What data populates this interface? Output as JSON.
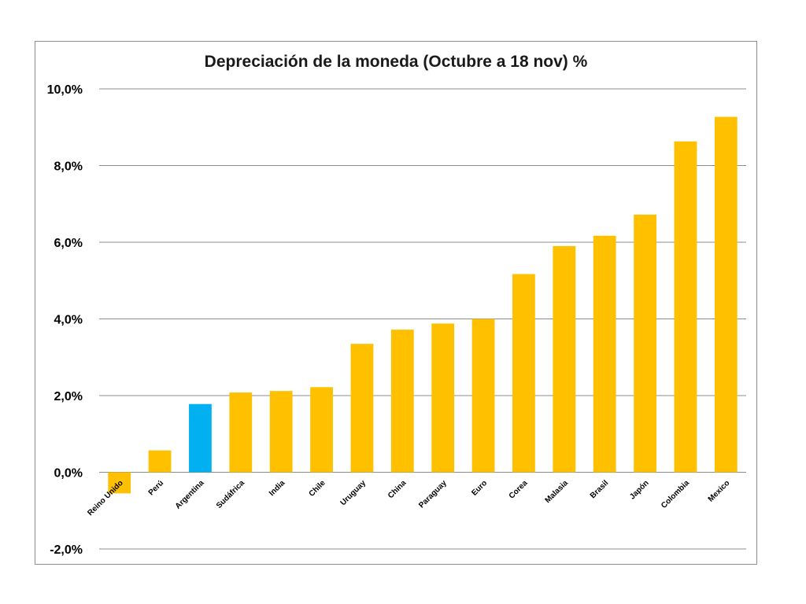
{
  "chart_data": {
    "type": "bar",
    "title": "Depreciación de la moneda (Octubre a 18 nov) %",
    "xlabel": "",
    "ylabel": "",
    "categories": [
      "Reino Unido",
      "Perú",
      "Argentina",
      "Sudáfrica",
      "India",
      "Chile",
      "Uruguay",
      "China",
      "Paraguay",
      "Euro",
      "Corea",
      "Malasia",
      "Brasil",
      "Japón",
      "Colombia",
      "Mexico"
    ],
    "values": [
      -0.55,
      0.57,
      1.78,
      2.08,
      2.12,
      2.22,
      3.35,
      3.72,
      3.88,
      4.0,
      5.17,
      5.9,
      6.17,
      6.72,
      8.63,
      9.27
    ],
    "ylim": [
      -2,
      10
    ],
    "yticks": [
      "-2,0%",
      "0,0%",
      "2,0%",
      "4,0%",
      "6,0%",
      "8,0%",
      "10,0%"
    ],
    "ytick_values": [
      -2,
      0,
      2,
      4,
      6,
      8,
      10
    ],
    "grid": true,
    "legend": "none",
    "colors": {
      "default": "#FFC000",
      "highlight": "#00B0F0",
      "grid": "#8c8c8c"
    },
    "highlight_category": "Argentina"
  }
}
